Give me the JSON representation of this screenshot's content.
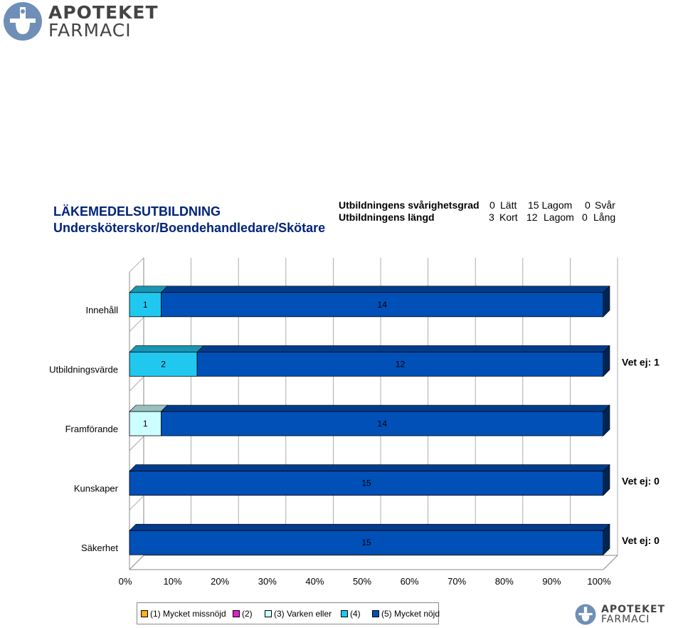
{
  "logo": {
    "line1": "APOTEKET",
    "line2": "FARMACI"
  },
  "header": {
    "title_line1": "LÄKEMEDELSUTBILDNING",
    "title_line2": "Undersköterskor/Boendehandledare/Skötare",
    "row1_label": "Utbildningens svårighetsgrad",
    "row2_label": "Utbildningens längd",
    "row1_values": [
      "0",
      "Lätt",
      "15 Lagom",
      "0",
      "Svår"
    ],
    "row2_values": [
      "3",
      "Kort",
      "12",
      "Lagom",
      "0",
      "Lång"
    ]
  },
  "colors": {
    "c1": "#ffb020",
    "c2": "#e020d0",
    "c3": "#ccffff",
    "c4": "#20c8f0",
    "c5": "#0050b8"
  },
  "chart_data": {
    "type": "bar",
    "orientation": "horizontal",
    "stacked": "percent",
    "categories": [
      "Innehåll",
      "Utbildningsvärde",
      "Framförande",
      "Kunskaper",
      "Säkerhet"
    ],
    "series": [
      {
        "name": "(1) Mycket missnöjd",
        "values": [
          0,
          0,
          0,
          0,
          0
        ]
      },
      {
        "name": "(2)",
        "values": [
          0,
          0,
          0,
          0,
          0
        ]
      },
      {
        "name": "(3) Varken eller",
        "values": [
          0,
          0,
          1,
          0,
          0
        ]
      },
      {
        "name": "(4)",
        "values": [
          1,
          2,
          0,
          0,
          0
        ]
      },
      {
        "name": "(5) Mycket nöjd",
        "values": [
          14,
          12,
          14,
          15,
          15
        ]
      }
    ],
    "vet_ej": [
      "",
      "Vet ej: 1",
      "",
      "Vet ej: 0",
      "Vet ej: 0"
    ],
    "x_ticks": [
      "0%",
      "10%",
      "20%",
      "30%",
      "40%",
      "50%",
      "60%",
      "70%",
      "80%",
      "90%",
      "100%"
    ],
    "xlim": [
      0,
      100
    ],
    "grid": true,
    "legend_position": "bottom"
  }
}
